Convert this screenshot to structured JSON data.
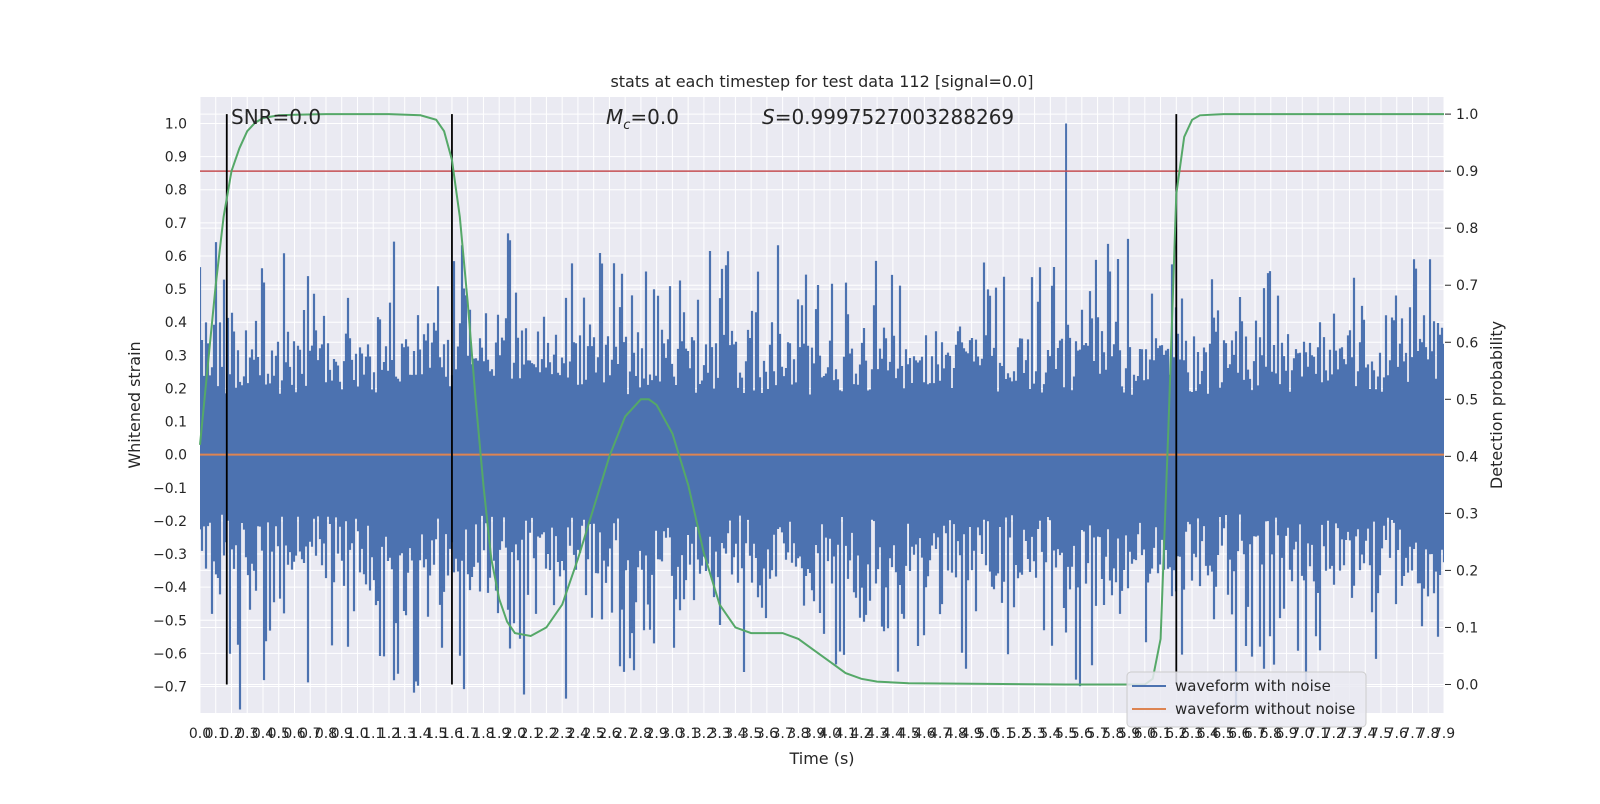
{
  "chart_data": {
    "type": "line",
    "title": "stats at each timestep for test data 112 [signal=0.0]",
    "xlabel": "Time (s)",
    "ylabel_left": "Whitened strain",
    "ylabel_right": "Detection probability",
    "xlim": [
      0.0,
      7.9
    ],
    "ylim_left": [
      -0.78,
      1.08
    ],
    "ylim_right": [
      -0.05,
      1.03
    ],
    "yticks_left": [
      "1.0",
      "0.9",
      "0.8",
      "0.7",
      "0.6",
      "0.5",
      "0.4",
      "0.3",
      "0.2",
      "0.1",
      "0.0",
      "−0.1",
      "−0.2",
      "−0.3",
      "−0.4",
      "−0.5",
      "−0.6",
      "−0.7"
    ],
    "yticks_right": [
      "1.0",
      "0.9",
      "0.8",
      "0.7",
      "0.6",
      "0.5",
      "0.4",
      "0.3",
      "0.2",
      "0.1",
      "0.0"
    ],
    "annotations": {
      "snr_text": "SNR=0.0",
      "mc_symbol": "M",
      "mc_sub": "c",
      "mc_value": "=0.0",
      "s_symbol": "S",
      "s_value": "=0.9997527003288269"
    },
    "grid": true,
    "legend_position": "lower-right",
    "legend": [
      "waveform with noise",
      "waveform without noise"
    ],
    "colors": {
      "noise": "#4c72b0",
      "clean": "#dd8452",
      "probability": "#55a868",
      "threshold": "#c44e52",
      "event_lines": "#000000",
      "background": "#eaeaf2",
      "grid": "#ffffff"
    },
    "threshold": 0.9,
    "event_lines_x": [
      0.17,
      1.6,
      6.2
    ],
    "series": [
      {
        "name": "waveform with noise",
        "description_envelope": {
          "upper_typical": [
            0.2,
            0.45
          ],
          "lower_typical": [
            -0.2,
            -0.5
          ],
          "spike_x": 5.5,
          "spike_y": 1.0
        }
      },
      {
        "name": "waveform without noise",
        "x": [
          0.0,
          7.9
        ],
        "y": [
          0.0,
          0.0
        ]
      },
      {
        "name": "detection probability",
        "x": [
          0.0,
          0.1,
          0.15,
          0.2,
          0.25,
          0.3,
          0.35,
          0.4,
          0.5,
          0.6,
          0.8,
          1.0,
          1.2,
          1.4,
          1.5,
          1.55,
          1.6,
          1.65,
          1.7,
          1.75,
          1.8,
          1.85,
          1.9,
          1.95,
          2.0,
          2.1,
          2.2,
          2.3,
          2.4,
          2.5,
          2.6,
          2.7,
          2.8,
          2.85,
          2.9,
          3.0,
          3.1,
          3.2,
          3.3,
          3.4,
          3.5,
          3.6,
          3.7,
          3.8,
          3.9,
          4.0,
          4.1,
          4.2,
          4.3,
          4.5,
          5.0,
          5.5,
          6.0,
          6.05,
          6.1,
          6.15,
          6.2,
          6.25,
          6.3,
          6.35,
          6.5,
          7.0,
          7.5,
          7.9
        ],
        "y": [
          0.42,
          0.7,
          0.82,
          0.9,
          0.94,
          0.97,
          0.985,
          0.993,
          0.998,
          0.999,
          1.0,
          1.0,
          1.0,
          0.998,
          0.99,
          0.97,
          0.92,
          0.82,
          0.67,
          0.5,
          0.35,
          0.22,
          0.15,
          0.11,
          0.09,
          0.085,
          0.1,
          0.14,
          0.22,
          0.31,
          0.4,
          0.47,
          0.5,
          0.5,
          0.49,
          0.44,
          0.35,
          0.23,
          0.14,
          0.1,
          0.09,
          0.09,
          0.09,
          0.08,
          0.06,
          0.04,
          0.02,
          0.01,
          0.005,
          0.002,
          0.001,
          0.0,
          0.0,
          0.01,
          0.08,
          0.45,
          0.86,
          0.96,
          0.99,
          0.998,
          1.0,
          1.0,
          1.0,
          1.0
        ]
      }
    ]
  }
}
